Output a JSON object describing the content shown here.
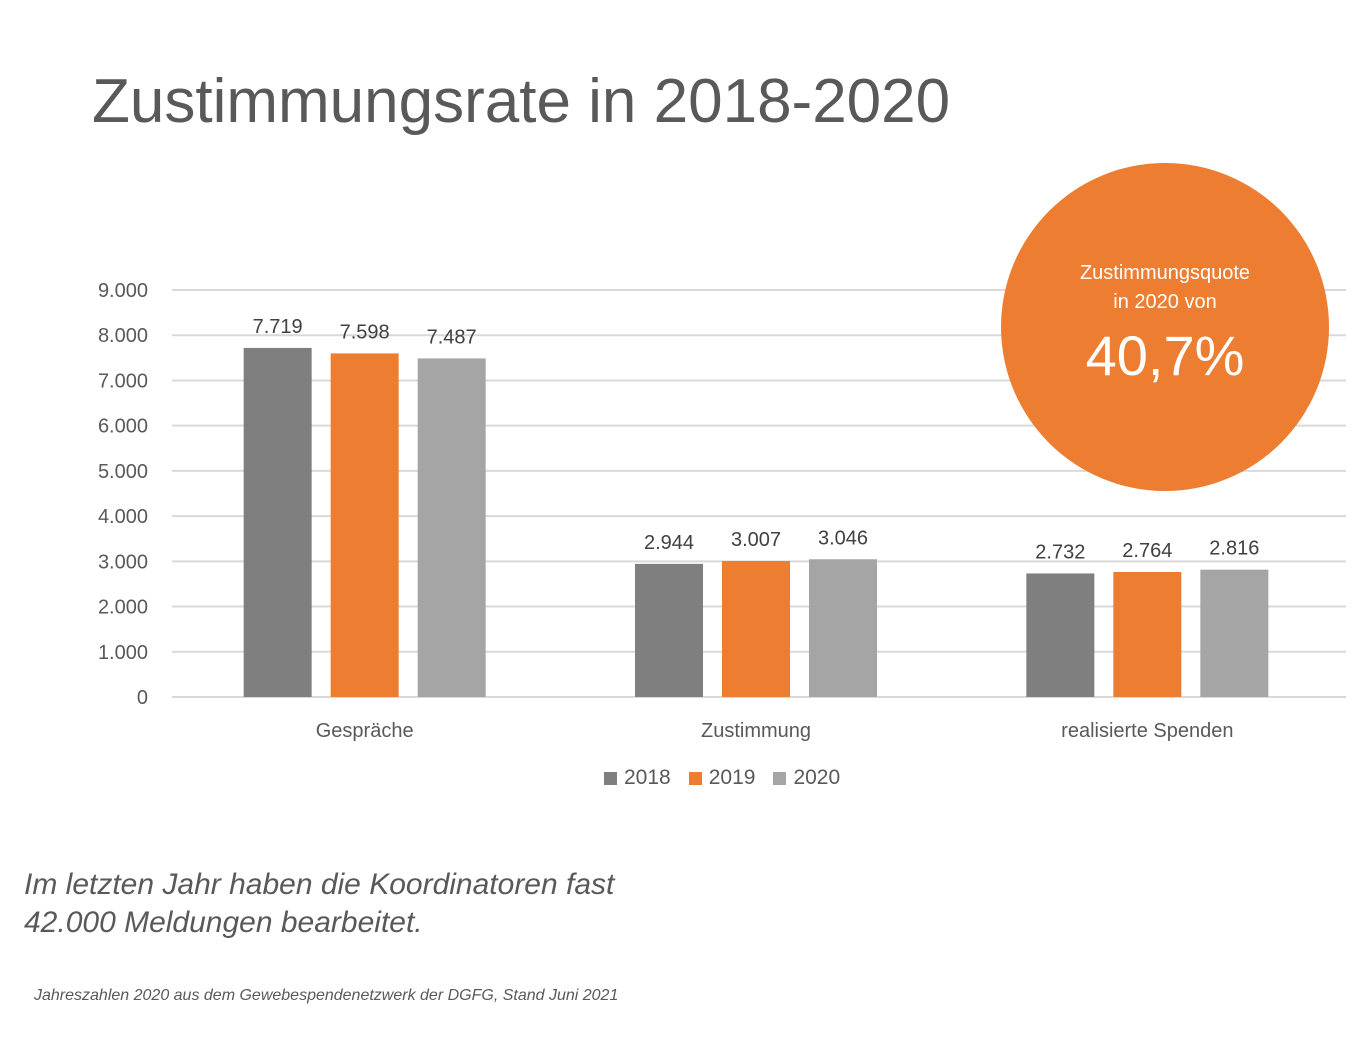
{
  "title": "Zustimmungsrate in 2018-2020",
  "callout": {
    "line1": "Zustimmungsquote",
    "line2": "in 2020 von",
    "value": "40,7%",
    "color": "#ED7D31"
  },
  "note": {
    "line1": "Im letzten Jahr haben die Koordinatoren fast",
    "line2": "42.000 Meldungen bearbeitet."
  },
  "source": "Jahreszahlen 2020 aus dem Gewebespendenetzwerk der DGFG, Stand Juni 2021",
  "chart_data": {
    "type": "bar",
    "title": "Zustimmungsrate in 2018-2020",
    "categories": [
      "Gespräche",
      "Zustimmung",
      "realisierte Spenden"
    ],
    "series": [
      {
        "name": "2018",
        "color": "#7F7F7F",
        "values": [
          7719,
          2944,
          2732
        ],
        "labels": [
          "7.719",
          "2.944",
          "2.732"
        ]
      },
      {
        "name": "2019",
        "color": "#ED7D31",
        "values": [
          7598,
          3007,
          2764
        ],
        "labels": [
          "7.598",
          "3.007",
          "2.764"
        ]
      },
      {
        "name": "2020",
        "color": "#A5A5A5",
        "values": [
          7487,
          3046,
          2816
        ],
        "labels": [
          "7.487",
          "3.046",
          "2.816"
        ]
      }
    ],
    "yticks": [
      "0",
      "1.000",
      "2.000",
      "3.000",
      "4.000",
      "5.000",
      "6.000",
      "7.000",
      "8.000",
      "9.000"
    ],
    "ytick_values": [
      0,
      1000,
      2000,
      3000,
      4000,
      5000,
      6000,
      7000,
      8000,
      9000
    ],
    "ylim": [
      0,
      9000
    ],
    "grid": true,
    "legend": "bottom-center",
    "xlabel": "",
    "ylabel": ""
  }
}
